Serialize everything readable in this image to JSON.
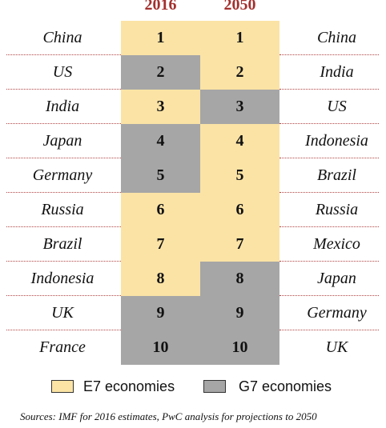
{
  "headers": {
    "y2016": "2016",
    "y2050": "2050"
  },
  "rows": [
    {
      "left": "China",
      "rank2016": "1",
      "rank2050": "1",
      "right": "China",
      "group2016": "E7",
      "group2050": "E7"
    },
    {
      "left": "US",
      "rank2016": "2",
      "rank2050": "2",
      "right": "India",
      "group2016": "G7",
      "group2050": "E7"
    },
    {
      "left": "India",
      "rank2016": "3",
      "rank2050": "3",
      "right": "US",
      "group2016": "E7",
      "group2050": "G7"
    },
    {
      "left": "Japan",
      "rank2016": "4",
      "rank2050": "4",
      "right": "Indonesia",
      "group2016": "G7",
      "group2050": "E7"
    },
    {
      "left": "Germany",
      "rank2016": "5",
      "rank2050": "5",
      "right": "Brazil",
      "group2016": "G7",
      "group2050": "E7"
    },
    {
      "left": "Russia",
      "rank2016": "6",
      "rank2050": "6",
      "right": "Russia",
      "group2016": "E7",
      "group2050": "E7"
    },
    {
      "left": "Brazil",
      "rank2016": "7",
      "rank2050": "7",
      "right": "Mexico",
      "group2016": "E7",
      "group2050": "E7"
    },
    {
      "left": "Indonesia",
      "rank2016": "8",
      "rank2050": "8",
      "right": "Japan",
      "group2016": "E7",
      "group2050": "G7"
    },
    {
      "left": "UK",
      "rank2016": "9",
      "rank2050": "9",
      "right": "Germany",
      "group2016": "G7",
      "group2050": "G7"
    },
    {
      "left": "France",
      "rank2016": "10",
      "rank2050": "10",
      "right": "UK",
      "group2016": "G7",
      "group2050": "G7"
    }
  ],
  "legend": {
    "e7_label": "E7 economies",
    "g7_label": "G7 economies",
    "e7_color": "#fbe3a5",
    "g7_color": "#a6a6a6"
  },
  "sources": "Sources: IMF for 2016 estimates, PwC analysis for projections to 2050",
  "colors": {
    "header": "#a3302e",
    "divider": "#b04343"
  }
}
